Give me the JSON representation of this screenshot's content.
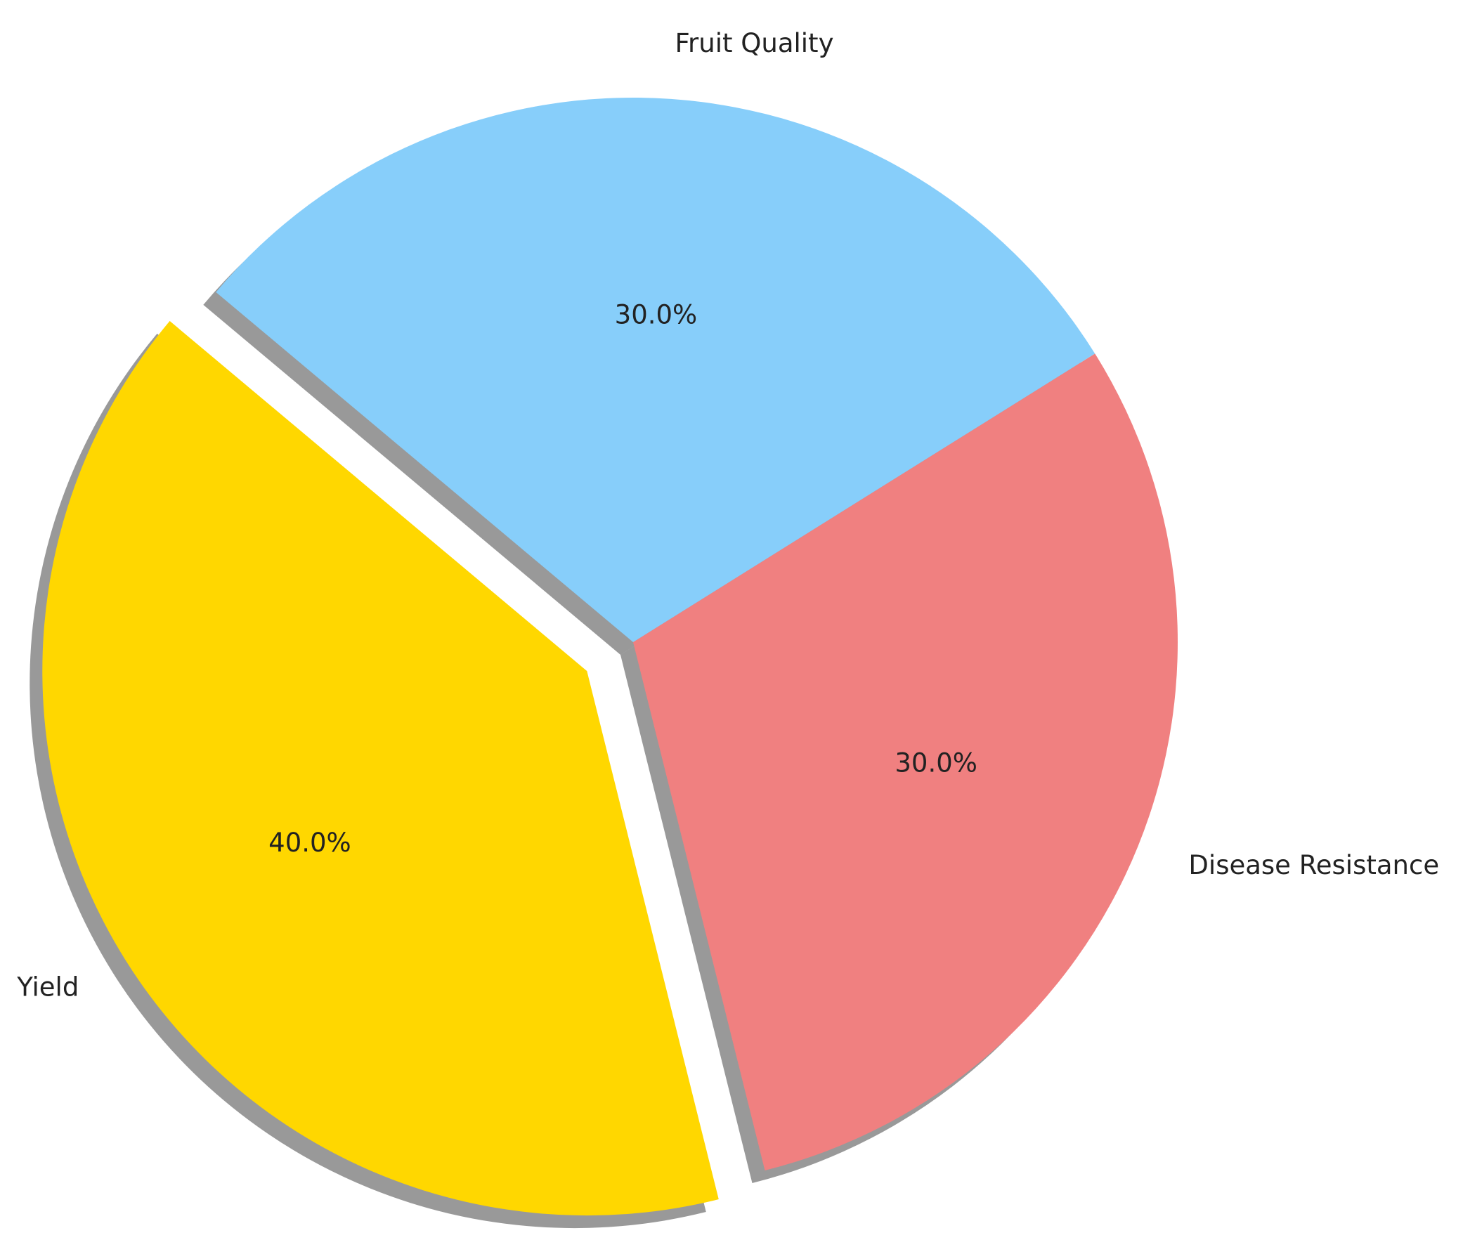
{
  "chart_data": {
    "type": "pie",
    "categories": [
      "Yield",
      "Disease Resistance",
      "Fruit Quality"
    ],
    "values": [
      40,
      30,
      30
    ],
    "value_labels": [
      "40.0%",
      "30.0%",
      "30.0%"
    ],
    "colors": [
      "#ffd700",
      "#f08080",
      "#87cefa"
    ],
    "explode": [
      0.1,
      0,
      0
    ],
    "startangle": 140,
    "shadow": true
  }
}
